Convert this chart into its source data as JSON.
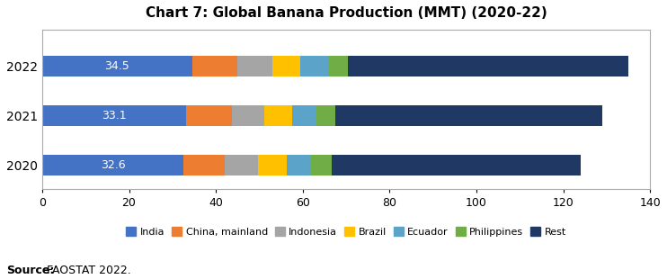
{
  "title": "Chart 7: Global Banana Production (MMT) (2020-22)",
  "years": [
    "2022",
    "2021",
    "2020"
  ],
  "segments": {
    "India": [
      34.5,
      33.1,
      32.6
    ],
    "China, mainland": [
      10.5,
      10.5,
      9.5
    ],
    "Indonesia": [
      8.0,
      7.5,
      7.5
    ],
    "Brazil": [
      6.5,
      6.5,
      6.8
    ],
    "Ecuador": [
      6.5,
      5.5,
      5.5
    ],
    "Philippines": [
      4.5,
      4.5,
      4.8
    ],
    "Rest": [
      64.5,
      61.4,
      57.3
    ]
  },
  "colors": {
    "India": "#4472C4",
    "China, mainland": "#ED7D31",
    "Indonesia": "#A5A5A5",
    "Brazil": "#FFC000",
    "Ecuador": "#5BA3C9",
    "Philippines": "#70AD47",
    "Rest": "#1F3864"
  },
  "india_labels": [
    "34.5",
    "33.1",
    "32.6"
  ],
  "xlim": [
    0,
    140
  ],
  "xticks": [
    0,
    20,
    40,
    60,
    80,
    100,
    120,
    140
  ],
  "source_bold": "Source:",
  "source_rest": " FAOSTAT 2022.",
  "bar_height": 0.42
}
